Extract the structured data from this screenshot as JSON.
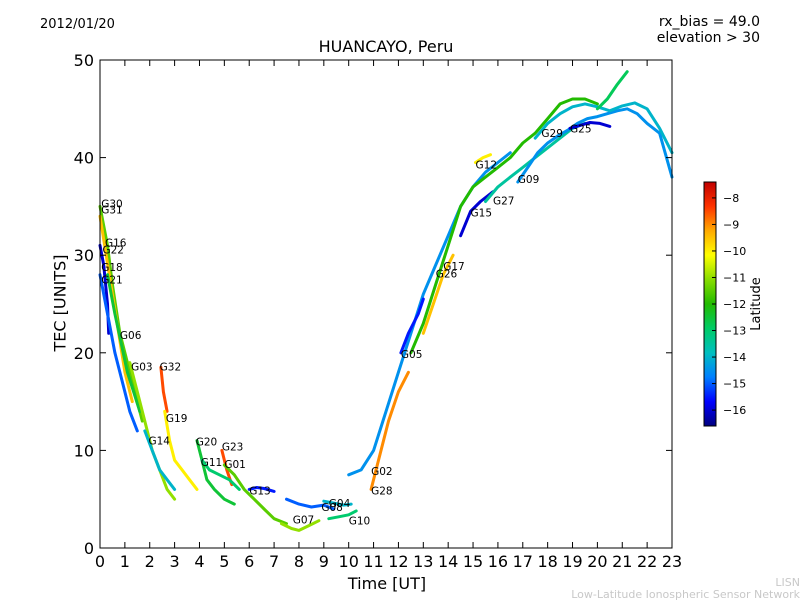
{
  "header": {
    "date": "2012/01/20",
    "rx_bias": "rx_bias = 49.0",
    "elevation": "elevation > 30"
  },
  "footer": {
    "network_short": "LISN",
    "network_long": "Low-Latitude Ionospheric Sensor Network"
  },
  "chart_data": {
    "type": "scatter",
    "title": "HUANCAYO, Peru",
    "xlabel": "Time [UT]",
    "ylabel": "TEC [UNITS]",
    "xlim": [
      0,
      23
    ],
    "ylim": [
      0,
      50
    ],
    "xticks": [
      0,
      1,
      2,
      3,
      4,
      5,
      6,
      7,
      8,
      9,
      10,
      11,
      12,
      13,
      14,
      15,
      16,
      17,
      18,
      19,
      20,
      21,
      22,
      23
    ],
    "yticks": [
      0,
      10,
      20,
      30,
      40,
      50
    ],
    "colorbar": {
      "label": "Latitude",
      "range": [
        -16.6,
        -7.4
      ],
      "ticks": [
        -8,
        -9,
        -10,
        -11,
        -12,
        -13,
        -14,
        -15,
        -16
      ],
      "colormap": [
        "#00007f",
        "#0000ff",
        "#007fff",
        "#00bfbf",
        "#00cc66",
        "#22bb00",
        "#88dd00",
        "#ffff00",
        "#ffaa00",
        "#ff3300",
        "#c00000"
      ]
    },
    "satellite_labels": [
      {
        "prn": "G30",
        "x": 0.05,
        "y": 35.3
      },
      {
        "prn": "G31",
        "x": 0.05,
        "y": 34.7
      },
      {
        "prn": "G16",
        "x": 0.2,
        "y": 31.3
      },
      {
        "prn": "G22",
        "x": 0.1,
        "y": 30.6
      },
      {
        "prn": "G18",
        "x": 0.05,
        "y": 28.8
      },
      {
        "prn": "G21",
        "x": 0.05,
        "y": 27.5
      },
      {
        "prn": "G06",
        "x": 0.8,
        "y": 21.8
      },
      {
        "prn": "G03",
        "x": 1.25,
        "y": 18.6
      },
      {
        "prn": "G32",
        "x": 2.4,
        "y": 18.6
      },
      {
        "prn": "G19",
        "x": 2.65,
        "y": 13.3
      },
      {
        "prn": "G14",
        "x": 1.95,
        "y": 11.0
      },
      {
        "prn": "G20",
        "x": 3.85,
        "y": 10.9
      },
      {
        "prn": "G23",
        "x": 4.9,
        "y": 10.4
      },
      {
        "prn": "G11",
        "x": 4.05,
        "y": 8.8
      },
      {
        "prn": "G01",
        "x": 5.0,
        "y": 8.6
      },
      {
        "prn": "G13",
        "x": 6.0,
        "y": 5.9
      },
      {
        "prn": "G04",
        "x": 9.2,
        "y": 4.6
      },
      {
        "prn": "G08",
        "x": 8.9,
        "y": 4.2
      },
      {
        "prn": "G07",
        "x": 7.75,
        "y": 2.9
      },
      {
        "prn": "G10",
        "x": 10.0,
        "y": 2.8
      },
      {
        "prn": "G02",
        "x": 10.9,
        "y": 7.9
      },
      {
        "prn": "G28",
        "x": 10.9,
        "y": 5.9
      },
      {
        "prn": "G05",
        "x": 12.1,
        "y": 19.9
      },
      {
        "prn": "G17",
        "x": 13.8,
        "y": 28.9
      },
      {
        "prn": "G26",
        "x": 13.5,
        "y": 28.1
      },
      {
        "prn": "G15",
        "x": 14.9,
        "y": 34.4
      },
      {
        "prn": "G27",
        "x": 15.8,
        "y": 35.6
      },
      {
        "prn": "G09",
        "x": 16.8,
        "y": 37.8
      },
      {
        "prn": "G12",
        "x": 15.1,
        "y": 39.3
      },
      {
        "prn": "G29",
        "x": 17.75,
        "y": 42.5
      },
      {
        "prn": "G25",
        "x": 18.9,
        "y": 43.0
      }
    ],
    "series": [
      {
        "prn": "G30",
        "latitude": -11.5,
        "points": [
          [
            0,
            35
          ],
          [
            0.3,
            31
          ],
          [
            0.5,
            27
          ],
          [
            0.8,
            22
          ],
          [
            1.1,
            19
          ],
          [
            1.4,
            16
          ],
          [
            1.7,
            13
          ]
        ]
      },
      {
        "prn": "G31",
        "latitude": -9.5,
        "points": [
          [
            0,
            34
          ],
          [
            0.25,
            30
          ],
          [
            0.5,
            26
          ],
          [
            0.75,
            22
          ],
          [
            1.0,
            18
          ],
          [
            1.3,
            15
          ]
        ]
      },
      {
        "prn": "G22",
        "latitude": -16.0,
        "points": [
          [
            0,
            31
          ],
          [
            0.15,
            29
          ],
          [
            0.3,
            25
          ],
          [
            0.35,
            22
          ]
        ]
      },
      {
        "prn": "G18",
        "latitude": -15.0,
        "points": [
          [
            0,
            28
          ],
          [
            0.3,
            24
          ],
          [
            0.6,
            20
          ],
          [
            0.9,
            17
          ],
          [
            1.2,
            14
          ],
          [
            1.5,
            12
          ]
        ]
      },
      {
        "prn": "G06",
        "latitude": -12.5,
        "points": [
          [
            0.3,
            28
          ],
          [
            0.6,
            24
          ],
          [
            0.85,
            21
          ],
          [
            1.1,
            18
          ],
          [
            1.35,
            16
          ],
          [
            1.6,
            14
          ]
        ]
      },
      {
        "prn": "G03",
        "latitude": -11.0,
        "points": [
          [
            1.2,
            19
          ],
          [
            1.5,
            16
          ],
          [
            1.8,
            13
          ],
          [
            2.1,
            10
          ],
          [
            2.4,
            8
          ],
          [
            2.7,
            6
          ],
          [
            3.0,
            5
          ]
        ]
      },
      {
        "prn": "G32",
        "latitude": -8.5,
        "points": [
          [
            2.45,
            18.5
          ],
          [
            2.55,
            16
          ],
          [
            2.7,
            14
          ]
        ]
      },
      {
        "prn": "G19",
        "latitude": -10.0,
        "points": [
          [
            2.6,
            14
          ],
          [
            2.8,
            11
          ],
          [
            3.0,
            9
          ],
          [
            3.3,
            8
          ],
          [
            3.6,
            7
          ],
          [
            3.9,
            6
          ]
        ]
      },
      {
        "prn": "G14",
        "latitude": -14.0,
        "points": [
          [
            1.8,
            12
          ],
          [
            2.1,
            10
          ],
          [
            2.4,
            8
          ],
          [
            2.7,
            7
          ],
          [
            3.0,
            6
          ]
        ]
      },
      {
        "prn": "G20",
        "latitude": -12.5,
        "points": [
          [
            3.9,
            11
          ],
          [
            4.1,
            9
          ],
          [
            4.3,
            7
          ],
          [
            4.6,
            6
          ],
          [
            5.0,
            5
          ],
          [
            5.4,
            4.5
          ]
        ]
      },
      {
        "prn": "G23",
        "latitude": -8.5,
        "points": [
          [
            4.9,
            10
          ],
          [
            5.1,
            8
          ],
          [
            5.3,
            6.5
          ]
        ]
      },
      {
        "prn": "G11",
        "latitude": -13.0,
        "points": [
          [
            4.1,
            9
          ],
          [
            4.4,
            8
          ],
          [
            4.8,
            7.5
          ],
          [
            5.2,
            7
          ],
          [
            5.6,
            6
          ]
        ]
      },
      {
        "prn": "G01",
        "latitude": -11.5,
        "points": [
          [
            5.0,
            8.5
          ],
          [
            5.4,
            7.5
          ],
          [
            5.8,
            6
          ],
          [
            6.2,
            5
          ],
          [
            6.6,
            4
          ],
          [
            7.0,
            3
          ],
          [
            7.5,
            2.5
          ]
        ]
      },
      {
        "prn": "G13",
        "latitude": -15.5,
        "points": [
          [
            6.0,
            6
          ],
          [
            6.3,
            6.2
          ],
          [
            6.6,
            6.1
          ],
          [
            7.0,
            5.8
          ]
        ]
      },
      {
        "prn": "G07",
        "latitude": -11.0,
        "points": [
          [
            7.3,
            2.5
          ],
          [
            7.7,
            2.0
          ],
          [
            8.0,
            1.8
          ],
          [
            8.4,
            2.3
          ],
          [
            8.8,
            2.8
          ]
        ]
      },
      {
        "prn": "G08",
        "latitude": -15.0,
        "points": [
          [
            7.5,
            5
          ],
          [
            8,
            4.5
          ],
          [
            8.5,
            4.2
          ],
          [
            9.0,
            4.4
          ],
          [
            9.4,
            4.0
          ]
        ]
      },
      {
        "prn": "G04",
        "latitude": -14.0,
        "points": [
          [
            9.0,
            4.8
          ],
          [
            9.4,
            4.6
          ],
          [
            9.8,
            4.4
          ],
          [
            10.1,
            4.5
          ]
        ]
      },
      {
        "prn": "G10",
        "latitude": -13.0,
        "points": [
          [
            9.2,
            3
          ],
          [
            9.6,
            3.2
          ],
          [
            10.0,
            3.4
          ],
          [
            10.3,
            3.8
          ]
        ]
      },
      {
        "prn": "G02",
        "latitude": -14.5,
        "points": [
          [
            10.0,
            7.5
          ],
          [
            10.5,
            8
          ],
          [
            11,
            10
          ],
          [
            11.5,
            14
          ],
          [
            12,
            18
          ],
          [
            12.5,
            22
          ],
          [
            13,
            26
          ],
          [
            13.5,
            29
          ],
          [
            14,
            32
          ],
          [
            14.5,
            35
          ],
          [
            15,
            37
          ],
          [
            15.5,
            38.5
          ],
          [
            16,
            39.5
          ],
          [
            16.5,
            40.5
          ]
        ]
      },
      {
        "prn": "G28",
        "latitude": -9.0,
        "points": [
          [
            10.9,
            6
          ],
          [
            11.2,
            9
          ],
          [
            11.6,
            13
          ],
          [
            12.0,
            16
          ],
          [
            12.4,
            18
          ]
        ]
      },
      {
        "prn": "G05",
        "latitude": -15.5,
        "points": [
          [
            12.1,
            20
          ],
          [
            12.4,
            22
          ],
          [
            12.8,
            24
          ],
          [
            13.0,
            25.5
          ]
        ]
      },
      {
        "prn": "G17",
        "latitude": -12.0,
        "points": [
          [
            12.5,
            20
          ],
          [
            13,
            23
          ],
          [
            13.5,
            27
          ],
          [
            14,
            31
          ],
          [
            14.5,
            35
          ],
          [
            15,
            37
          ],
          [
            15.5,
            38
          ],
          [
            16,
            39
          ],
          [
            16.5,
            40
          ],
          [
            17,
            41.5
          ],
          [
            17.5,
            42.5
          ],
          [
            18,
            44
          ],
          [
            18.5,
            45.5
          ],
          [
            19,
            46
          ],
          [
            19.5,
            46
          ],
          [
            20,
            45.5
          ]
        ]
      },
      {
        "prn": "G26",
        "latitude": -9.5,
        "points": [
          [
            13,
            22
          ],
          [
            13.4,
            25
          ],
          [
            13.8,
            28
          ],
          [
            14.2,
            30
          ]
        ]
      },
      {
        "prn": "G15",
        "latitude": -16.0,
        "points": [
          [
            14.5,
            32
          ],
          [
            14.9,
            34.5
          ],
          [
            15.3,
            35.5
          ],
          [
            15.8,
            36.5
          ]
        ]
      },
      {
        "prn": "G27",
        "latitude": -13.5,
        "points": [
          [
            15.5,
            35.5
          ],
          [
            16,
            37
          ],
          [
            16.5,
            38
          ],
          [
            17,
            39
          ],
          [
            17.5,
            40
          ],
          [
            18,
            41
          ],
          [
            18.5,
            42
          ],
          [
            19,
            43
          ],
          [
            19.5,
            43.5
          ]
        ]
      },
      {
        "prn": "G09",
        "latitude": -14.5,
        "points": [
          [
            16.8,
            37.5
          ],
          [
            17.2,
            39
          ],
          [
            17.6,
            40.5
          ],
          [
            18,
            41.5
          ],
          [
            18.4,
            42.2
          ],
          [
            18.8,
            42.8
          ],
          [
            19.2,
            43.5
          ],
          [
            19.6,
            44
          ],
          [
            20,
            44.2
          ],
          [
            20.4,
            44.5
          ],
          [
            20.8,
            44.8
          ],
          [
            21.2,
            45
          ],
          [
            21.6,
            44.5
          ],
          [
            22,
            43.5
          ],
          [
            22.5,
            42.5
          ],
          [
            23,
            38
          ]
        ]
      },
      {
        "prn": "G12",
        "latitude": -10.0,
        "points": [
          [
            15.1,
            39.5
          ],
          [
            15.4,
            40
          ],
          [
            15.7,
            40.3
          ]
        ]
      },
      {
        "prn": "G29",
        "latitude": -14.0,
        "points": [
          [
            17.5,
            42
          ],
          [
            18,
            43.5
          ],
          [
            18.5,
            44.5
          ],
          [
            19,
            45.2
          ],
          [
            19.5,
            45.5
          ],
          [
            20,
            45.2
          ],
          [
            20.5,
            44.8
          ],
          [
            21,
            45.3
          ],
          [
            21.5,
            45.6
          ],
          [
            22,
            45
          ],
          [
            22.5,
            43
          ],
          [
            23,
            40.5
          ]
        ]
      },
      {
        "prn": "G25",
        "latitude": -16.0,
        "points": [
          [
            18.9,
            43
          ],
          [
            19.3,
            43.3
          ],
          [
            19.7,
            43.6
          ],
          [
            20.1,
            43.5
          ],
          [
            20.5,
            43.2
          ]
        ]
      },
      {
        "prn": "G16",
        "latitude": -12.8,
        "points": [
          [
            20,
            45
          ],
          [
            20.4,
            46
          ],
          [
            20.8,
            47.5
          ],
          [
            21.2,
            48.8
          ]
        ]
      }
    ]
  }
}
